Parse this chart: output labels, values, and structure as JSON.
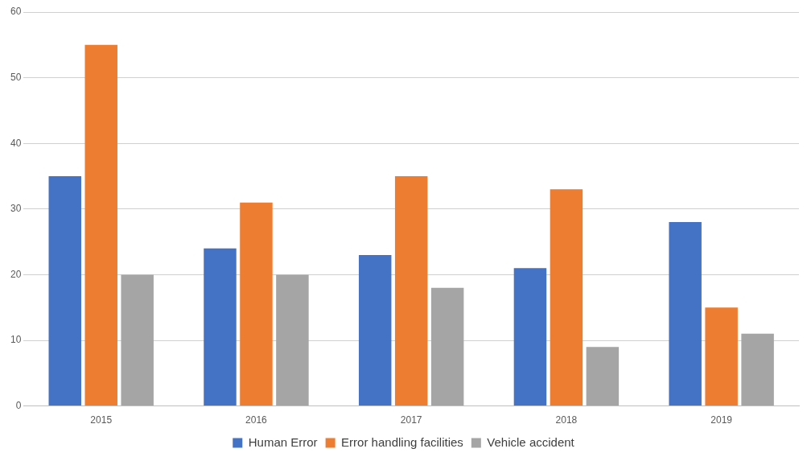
{
  "chart_data": {
    "type": "bar",
    "categories": [
      "2015",
      "2016",
      "2017",
      "2018",
      "2019"
    ],
    "series": [
      {
        "name": "Human Error",
        "color": "#4472c4",
        "values": [
          35,
          24,
          23,
          21,
          28
        ]
      },
      {
        "name": "Error handling facilities",
        "color": "#ed7d31",
        "values": [
          55,
          31,
          35,
          33,
          15
        ]
      },
      {
        "name": "Vehicle accident",
        "color": "#a5a5a5",
        "values": [
          20,
          20,
          18,
          9,
          11
        ]
      }
    ],
    "ylim": [
      0,
      60
    ],
    "yticks": [
      0,
      10,
      20,
      30,
      40,
      50,
      60
    ],
    "grid": "y",
    "legend": "bottom"
  }
}
